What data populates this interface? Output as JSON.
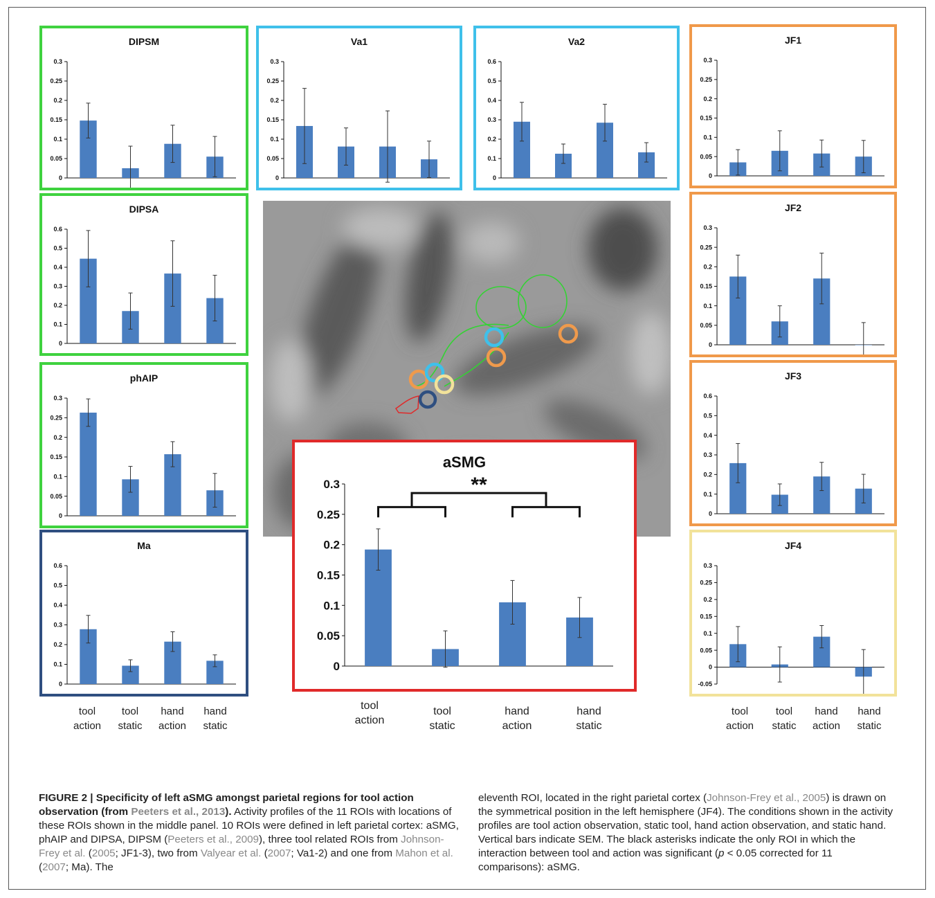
{
  "conditions": [
    "tool\naction",
    "tool\nstatic",
    "hand\naction",
    "hand\nstatic"
  ],
  "panels": [
    {
      "id": "DIPSM",
      "title": "DIPSM",
      "color": "#3fd23f",
      "ylim": [
        0,
        0.3
      ],
      "ticks": [
        "0",
        "0.05",
        "0.1",
        "0.15",
        "0.2",
        "0.25",
        "0.3"
      ],
      "values": [
        0.148,
        0.025,
        0.088,
        0.055
      ],
      "errors": [
        0.045,
        0.057,
        0.048,
        0.052
      ]
    },
    {
      "id": "Va1",
      "title": "Va1",
      "color": "#3fc0ea",
      "ylim": [
        0,
        0.3
      ],
      "ticks": [
        "0",
        "0.05",
        "0.1",
        "0.15",
        "0.2",
        "0.25",
        "0.3"
      ],
      "values": [
        0.134,
        0.081,
        0.081,
        0.048
      ],
      "errors": [
        0.097,
        0.048,
        0.092,
        0.047
      ]
    },
    {
      "id": "Va2",
      "title": "Va2",
      "color": "#3fc0ea",
      "ylim": [
        0,
        0.6
      ],
      "ticks": [
        "0",
        "0.1",
        "0.2",
        "0.3",
        "0.4",
        "0.5",
        "0.6"
      ],
      "values": [
        0.29,
        0.125,
        0.285,
        0.132
      ],
      "errors": [
        0.1,
        0.05,
        0.095,
        0.05
      ]
    },
    {
      "id": "JF1",
      "title": "JF1",
      "color": "#f0994a",
      "ylim": [
        0,
        0.3
      ],
      "ticks": [
        "0",
        "0.05",
        "0.1",
        "0.15",
        "0.2",
        "0.25",
        "0.3"
      ],
      "values": [
        0.035,
        0.065,
        0.058,
        0.05
      ],
      "errors": [
        0.033,
        0.052,
        0.035,
        0.042
      ]
    },
    {
      "id": "DIPSA",
      "title": "DIPSA",
      "color": "#3fd23f",
      "ylim": [
        0,
        0.6
      ],
      "ticks": [
        "0",
        "0.1",
        "0.2",
        "0.3",
        "0.4",
        "0.5",
        "0.6"
      ],
      "values": [
        0.445,
        0.17,
        0.367,
        0.238
      ],
      "errors": [
        0.148,
        0.095,
        0.172,
        0.12
      ]
    },
    {
      "id": "JF2",
      "title": "JF2",
      "color": "#f0994a",
      "ylim": [
        0,
        0.3
      ],
      "ticks": [
        "0",
        "0.05",
        "0.1",
        "0.15",
        "0.2",
        "0.25",
        "0.3"
      ],
      "values": [
        0.175,
        0.06,
        0.17,
        0.0
      ],
      "errors": [
        0.055,
        0.04,
        0.065,
        0.057
      ]
    },
    {
      "id": "phAIP",
      "title": "phAIP",
      "color": "#3fd23f",
      "ylim": [
        0,
        0.3
      ],
      "ticks": [
        "0",
        "0.05",
        "0.1",
        "0.15",
        "0.2",
        "0.25",
        "0.3"
      ],
      "values": [
        0.263,
        0.093,
        0.157,
        0.065
      ],
      "errors": [
        0.035,
        0.033,
        0.032,
        0.043
      ]
    },
    {
      "id": "JF3",
      "title": "JF3",
      "color": "#f0994a",
      "ylim": [
        0,
        0.6
      ],
      "ticks": [
        "0",
        "0.1",
        "0.2",
        "0.3",
        "0.4",
        "0.5",
        "0.6"
      ],
      "values": [
        0.258,
        0.097,
        0.19,
        0.128
      ],
      "errors": [
        0.1,
        0.055,
        0.072,
        0.073
      ]
    },
    {
      "id": "Ma",
      "title": "Ma",
      "color": "#2f4f80",
      "ylim": [
        0,
        0.6
      ],
      "ticks": [
        "0",
        "0.1",
        "0.2",
        "0.3",
        "0.4",
        "0.5",
        "0.6"
      ],
      "values": [
        0.278,
        0.093,
        0.215,
        0.118
      ],
      "errors": [
        0.07,
        0.03,
        0.05,
        0.03
      ]
    },
    {
      "id": "JF4",
      "title": "JF4",
      "color": "#f2e29a",
      "ylim": [
        -0.05,
        0.3
      ],
      "ticks": [
        "-0.05",
        "0",
        "0.05",
        "0.1",
        "0.15",
        "0.2",
        "0.25",
        "0.3"
      ],
      "values": [
        0.068,
        0.008,
        0.09,
        -0.028
      ],
      "errors": [
        0.052,
        0.052,
        0.033,
        0.08
      ]
    },
    {
      "id": "aSMG",
      "title": "aSMG",
      "color": "#e02a2a",
      "ylim": [
        0,
        0.3
      ],
      "ticks": [
        "0",
        "0.05",
        "0.1",
        "0.15",
        "0.2",
        "0.25",
        "0.3"
      ],
      "values": [
        0.192,
        0.028,
        0.105,
        0.08
      ],
      "errors": [
        0.034,
        0.03,
        0.036,
        0.033
      ],
      "significance": "**"
    }
  ],
  "caption": {
    "figure_label": "FIGURE 2 | Specificity of left aSMG amongst parietal regions for tool action observation (from ",
    "figure_ref": "Peeters et al., 2013",
    "figure_end": ").",
    "t1": " Activity profiles of the 11 ROIs with locations of these ROIs shown in the middle panel. 10 ROIs were defined in left parietal cortex: aSMG, phAIP and DIPSA, DIPSM (",
    "r1": "Peeters et al., 2009",
    "t2": "), three tool related ROIs from ",
    "r2": "Johnson-Frey et al.",
    "t3": " (",
    "r3": "2005",
    "t4": "; JF1-3), two from ",
    "r4": "Valyear et al.",
    "t5": " (",
    "r5": "2007",
    "t6": "; Va1-2) and one from ",
    "r6": "Mahon et al.",
    "t7": " (",
    "r7": "2007",
    "t8": "; Ma). The",
    "c2a": "eleventh ROI, located in the right parietal cortex (",
    "c2r": "Johnson-Frey et al., 2005",
    "c2b": ") is drawn on the symmetrical position in the left hemisphere (JF4). The conditions shown in the activity profiles are tool action observation, static tool, hand action observation, and static hand. Vertical bars indicate SEM. The black asterisks indicate the only ROI in which the interaction between tool and action was significant (",
    "c2p": "p",
    "c2c": " < 0.05 corrected for 11 comparisons): aSMG."
  }
}
